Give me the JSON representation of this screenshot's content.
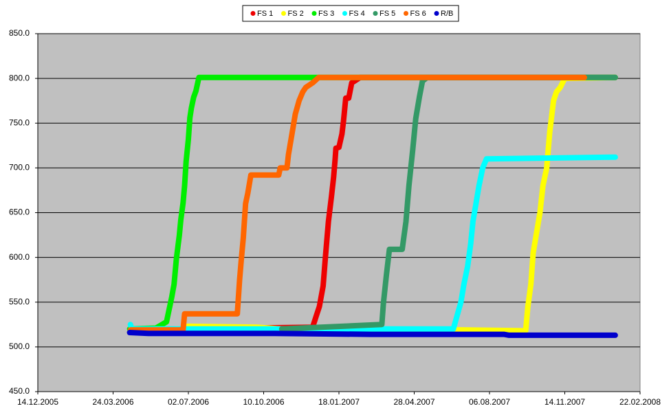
{
  "chart_data": {
    "type": "scatter",
    "legend": "top",
    "grid": true,
    "plot_background": "#c0c0c0",
    "xlim": [
      "2005-12-14",
      "2008-02-22"
    ],
    "xticks": [
      {
        "value": "2005-12-14",
        "label": "14.12.2005"
      },
      {
        "value": "2006-03-24",
        "label": "24.03.2006"
      },
      {
        "value": "2006-07-02",
        "label": "02.07.2006"
      },
      {
        "value": "2006-10-10",
        "label": "10.10.2006"
      },
      {
        "value": "2007-01-18",
        "label": "18.01.2007"
      },
      {
        "value": "2007-04-28",
        "label": "28.04.2007"
      },
      {
        "value": "2007-08-06",
        "label": "06.08.2007"
      },
      {
        "value": "2007-11-14",
        "label": "14.11.2007"
      },
      {
        "value": "2008-02-22",
        "label": "22.02.2008"
      }
    ],
    "ylim": [
      450,
      850
    ],
    "yticks": [
      {
        "value": 450,
        "label": "450.0"
      },
      {
        "value": 500,
        "label": "500.0"
      },
      {
        "value": 550,
        "label": "550.0"
      },
      {
        "value": 600,
        "label": "600.0"
      },
      {
        "value": 650,
        "label": "650.0"
      },
      {
        "value": 700,
        "label": "700.0"
      },
      {
        "value": 750,
        "label": "750.0"
      },
      {
        "value": 800,
        "label": "800.0"
      },
      {
        "value": 850,
        "label": "850.0"
      }
    ],
    "series": [
      {
        "name": "FS 1",
        "color": "#ee0000",
        "x": [
          "2006-04-16",
          "2006-06-30",
          "2006-12-14",
          "2006-12-19",
          "2006-12-23",
          "2006-12-28",
          "2006-12-31",
          "2007-01-04",
          "2007-01-08",
          "2007-01-11",
          "2007-01-13",
          "2007-01-14",
          "2007-01-18",
          "2007-01-22",
          "2007-01-24",
          "2007-01-27",
          "2007-01-31",
          "2007-02-04",
          "2007-02-15",
          "2008-01-20"
        ],
        "values": [
          519,
          520,
          522,
          535,
          545,
          568,
          600,
          640,
          668,
          690,
          710,
          722,
          723,
          738,
          752,
          778,
          778,
          795,
          801,
          801
        ]
      },
      {
        "name": "FS 2",
        "color": "#ffff00",
        "x": [
          "2006-04-16",
          "2006-06-25",
          "2006-07-01",
          "2006-10-01",
          "2006-11-01",
          "2007-03-01",
          "2007-07-01",
          "2007-09-23",
          "2007-09-26",
          "2007-09-30",
          "2007-10-03",
          "2007-10-07",
          "2007-10-12",
          "2007-10-16",
          "2007-10-21",
          "2007-10-25",
          "2007-10-30",
          "2007-11-03",
          "2007-11-08",
          "2007-11-14",
          "2008-01-20"
        ],
        "values": [
          519,
          520,
          523,
          522,
          520,
          519,
          519,
          518,
          545,
          570,
          605,
          625,
          650,
          680,
          700,
          740,
          775,
          785,
          790,
          800,
          801
        ]
      },
      {
        "name": "FS 3",
        "color": "#00ee00",
        "x": [
          "2006-04-15",
          "2006-05-20",
          "2006-05-28",
          "2006-06-03",
          "2006-06-10",
          "2006-06-13",
          "2006-06-16",
          "2006-06-20",
          "2006-06-22",
          "2006-06-25",
          "2006-06-27",
          "2006-06-29",
          "2006-07-02",
          "2006-07-04",
          "2006-07-06",
          "2006-07-09",
          "2006-07-12",
          "2006-07-16",
          "2007-01-15",
          "2007-07-15",
          "2008-01-20"
        ],
        "values": [
          520,
          521,
          525,
          528,
          556,
          570,
          598,
          625,
          642,
          661,
          680,
          707,
          732,
          756,
          767,
          779,
          786,
          801,
          801,
          801,
          801
        ]
      },
      {
        "name": "FS 4",
        "color": "#00ffff",
        "x": [
          "2006-04-16",
          "2006-04-18",
          "2006-10-25",
          "2007-06-19",
          "2007-06-24",
          "2007-06-29",
          "2007-07-03",
          "2007-07-08",
          "2007-07-12",
          "2007-07-15",
          "2007-07-19",
          "2007-07-23",
          "2007-07-28",
          "2007-08-02",
          "2008-01-20"
        ],
        "values": [
          525,
          520,
          520,
          520,
          535,
          550,
          570,
          590,
          615,
          640,
          660,
          680,
          700,
          710,
          712
        ]
      },
      {
        "name": "FS 5",
        "color": "#339966",
        "x": [
          "2006-11-03",
          "2007-03-16",
          "2007-03-18",
          "2007-03-22",
          "2007-03-26",
          "2007-04-12",
          "2007-04-17",
          "2007-04-21",
          "2007-04-26",
          "2007-04-30",
          "2007-05-05",
          "2007-05-09",
          "2007-05-15",
          "2008-01-20"
        ],
        "values": [
          520,
          525,
          548,
          580,
          609,
          609,
          640,
          680,
          720,
          755,
          780,
          797,
          801,
          801
        ]
      },
      {
        "name": "FS 6",
        "color": "#ff6600",
        "x": [
          "2006-04-16",
          "2006-06-25",
          "2006-06-27",
          "2006-09-05",
          "2006-09-08",
          "2006-09-10",
          "2006-09-13",
          "2006-09-16",
          "2006-09-19",
          "2006-09-23",
          "2006-10-30",
          "2006-11-01",
          "2006-11-10",
          "2006-11-12",
          "2006-11-17",
          "2006-11-21",
          "2006-11-26",
          "2006-12-01",
          "2006-12-05",
          "2006-12-14",
          "2006-12-22",
          "2007-12-10"
        ],
        "values": [
          519,
          519,
          537,
          537,
          575,
          595,
          622,
          660,
          672,
          692,
          692,
          700,
          700,
          715,
          740,
          760,
          775,
          785,
          790,
          795,
          801,
          801
        ]
      },
      {
        "name": "R/B",
        "color": "#0000cc",
        "x": [
          "2006-04-15",
          "2006-05-10",
          "2006-10-25",
          "2007-03-01",
          "2007-08-25",
          "2007-09-01",
          "2008-01-20"
        ],
        "values": [
          516,
          515,
          515,
          514,
          514,
          513,
          513
        ]
      }
    ]
  }
}
